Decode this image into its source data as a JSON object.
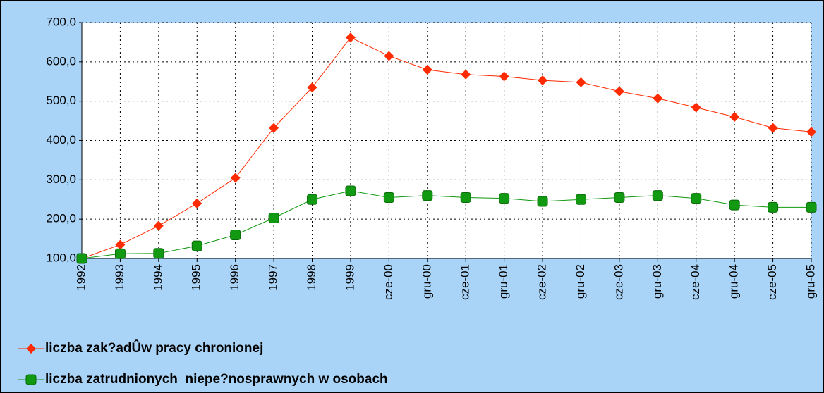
{
  "chart_data": {
    "type": "line",
    "categories": [
      "1992",
      "1993",
      "1994",
      "1995",
      "1996",
      "1997",
      "1998",
      "1999",
      "cze-00",
      "gru-00",
      "cze-01",
      "gru-01",
      "cze-02",
      "gru-02",
      "cze-03",
      "gru-03",
      "cze-04",
      "gru-04",
      "cze-05",
      "gru-05"
    ],
    "series": [
      {
        "name": "liczba zak?adÛw pracy chronionej",
        "color": "#ff2a00",
        "marker": "diamond",
        "values": [
          100,
          135,
          183,
          240,
          305,
          432,
          535,
          662,
          615,
          580,
          568,
          563,
          553,
          548,
          525,
          507,
          484,
          460,
          432,
          422
        ]
      },
      {
        "name": "liczba zatrudnionych  niepe?nosprawnych w osobach",
        "color": "#119911",
        "marker": "square",
        "values": [
          100,
          112,
          113,
          132,
          160,
          203,
          250,
          272,
          255,
          260,
          255,
          253,
          245,
          250,
          255,
          260,
          253,
          236,
          230,
          230
        ]
      }
    ],
    "ylim": [
      100,
      700
    ],
    "yticks": [
      {
        "value": 100,
        "label": "100,0"
      },
      {
        "value": 200,
        "label": "200,0"
      },
      {
        "value": 300,
        "label": "300,0"
      },
      {
        "value": 400,
        "label": "400,0"
      },
      {
        "value": 500,
        "label": "500,0"
      },
      {
        "value": 600,
        "label": "600,0"
      },
      {
        "value": 700,
        "label": "700,0"
      }
    ],
    "grid": true,
    "legend": "bottom"
  }
}
